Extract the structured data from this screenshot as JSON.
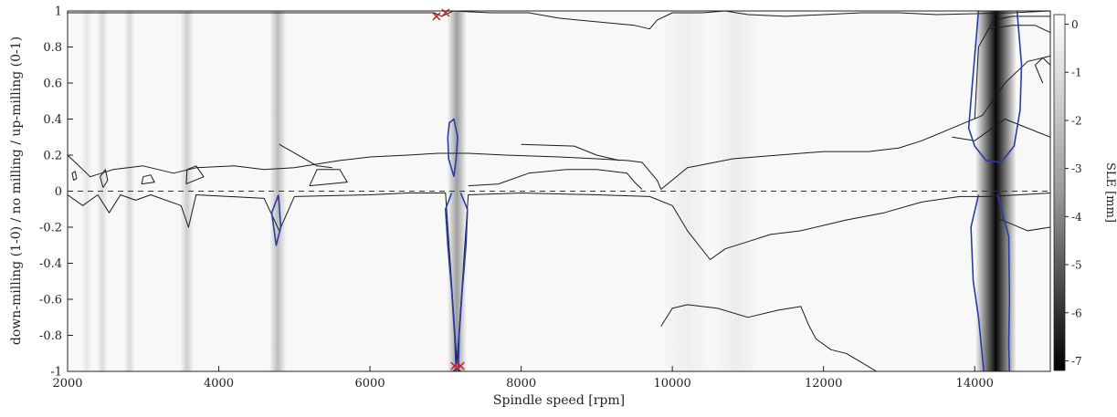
{
  "chart_data": {
    "type": "heatmap",
    "title": "",
    "xlabel": "Spindle speed [rpm]",
    "ylabel": "down-milling (1-0) / no milling / up-milling (0-1)",
    "xlim": [
      2000,
      15000
    ],
    "ylim": [
      -1,
      1
    ],
    "xticks": [
      2000,
      4000,
      6000,
      8000,
      10000,
      12000,
      14000
    ],
    "yticks": [
      -1,
      -0.8,
      -0.6,
      -0.4,
      -0.2,
      0,
      0.2,
      0.4,
      0.6,
      0.8,
      1
    ],
    "colorbar": {
      "label": "SLE [mm]",
      "range": [
        -7.2,
        0.2
      ],
      "ticks": [
        0,
        -1,
        -2,
        -3,
        -4,
        -5,
        -6,
        -7
      ],
      "colormap": "grayscale (white = 0, black = -7)"
    },
    "grid": false,
    "reference_line": {
      "y": 0,
      "style": "dashed"
    },
    "dark_bands": [
      {
        "x": 2250,
        "width": 35,
        "depth": -0.45
      },
      {
        "x": 2460,
        "width": 40,
        "depth": -0.75
      },
      {
        "x": 2820,
        "width": 45,
        "depth": -0.85
      },
      {
        "x": 3580,
        "width": 55,
        "depth": -1.2
      },
      {
        "x": 4780,
        "width": 70,
        "depth": -1.7
      },
      {
        "x": 7150,
        "width": 80,
        "depth": -2.6
      },
      {
        "x": 10200,
        "width": 200,
        "depth": -0.25
      },
      {
        "x": 10850,
        "width": 200,
        "depth": -0.3
      },
      {
        "x": 14280,
        "width": 170,
        "depth": -7.0
      }
    ],
    "contours": [
      {
        "color": "#1a1a1a",
        "points": [
          [
            2000,
            0.2
          ],
          [
            2100,
            0.16
          ],
          [
            2300,
            0.08
          ],
          [
            2600,
            0.12
          ],
          [
            3000,
            0.14
          ],
          [
            3400,
            0.1
          ],
          [
            3700,
            0.13
          ],
          [
            4200,
            0.14
          ],
          [
            4600,
            0.12
          ],
          [
            5000,
            0.13
          ],
          [
            5600,
            0.17
          ],
          [
            6000,
            0.19
          ],
          [
            6500,
            0.2
          ],
          [
            6900,
            0.21
          ],
          [
            7300,
            0.21
          ],
          [
            7800,
            0.2
          ],
          [
            8500,
            0.19
          ],
          [
            9000,
            0.18
          ],
          [
            9400,
            0.17
          ],
          [
            9600,
            0.16
          ],
          [
            9800,
            0.06
          ],
          [
            9850,
            0.01
          ]
        ]
      },
      {
        "color": "#1a1a1a",
        "points": [
          [
            7300,
            0.03
          ],
          [
            7700,
            0.04
          ],
          [
            8100,
            0.1
          ],
          [
            8600,
            0.12
          ],
          [
            9000,
            0.12
          ],
          [
            9400,
            0.1
          ],
          [
            9500,
            0.05
          ],
          [
            9600,
            0.01
          ]
        ]
      },
      {
        "color": "#1a1a1a",
        "points": [
          [
            9850,
            0.01
          ],
          [
            10200,
            0.13
          ],
          [
            10800,
            0.18
          ],
          [
            11400,
            0.2
          ],
          [
            12000,
            0.22
          ],
          [
            12600,
            0.22
          ],
          [
            13000,
            0.24
          ],
          [
            13300,
            0.28
          ],
          [
            13700,
            0.35
          ],
          [
            14100,
            0.42
          ],
          [
            14400,
            0.6
          ],
          [
            14700,
            0.72
          ],
          [
            15000,
            0.75
          ]
        ]
      },
      {
        "color": "#1a1a1a",
        "points": [
          [
            4800,
            0.26
          ],
          [
            5300,
            0.14
          ],
          [
            5500,
            0.13
          ]
        ]
      },
      {
        "color": "#1a1a1a",
        "points": [
          [
            8000,
            0.26
          ],
          [
            8700,
            0.25
          ],
          [
            9000,
            0.2
          ],
          [
            9300,
            0.17
          ]
        ]
      },
      {
        "color": "#1a1a1a",
        "points": [
          [
            13700,
            0.3
          ],
          [
            14000,
            0.28
          ],
          [
            14400,
            0.4
          ],
          [
            14700,
            0.35
          ],
          [
            15000,
            0.3
          ]
        ]
      },
      {
        "color": "#1a1a1a",
        "points": [
          [
            2000,
            0.99
          ],
          [
            6500,
            0.99
          ],
          [
            6850,
            0.99
          ],
          [
            6950,
            0.97
          ],
          [
            7100,
            1.0
          ],
          [
            7600,
            0.99
          ],
          [
            8100,
            0.99
          ],
          [
            8500,
            0.96
          ],
          [
            9000,
            0.94
          ],
          [
            9500,
            0.92
          ],
          [
            9700,
            0.9
          ],
          [
            9800,
            0.95
          ],
          [
            10000,
            0.99
          ],
          [
            10400,
            0.99
          ],
          [
            10700,
            1.0
          ],
          [
            11000,
            0.98
          ],
          [
            11500,
            0.97
          ],
          [
            12000,
            0.98
          ],
          [
            12500,
            0.99
          ],
          [
            13000,
            0.99
          ],
          [
            13500,
            0.98
          ],
          [
            14500,
            0.99
          ],
          [
            15000,
            1.0
          ]
        ]
      },
      {
        "color": "#1a1a1a",
        "points": [
          [
            14000,
            0.4
          ],
          [
            14050,
            0.8
          ],
          [
            14250,
            0.95
          ],
          [
            14500,
            0.97
          ],
          [
            15000,
            0.97
          ]
        ]
      },
      {
        "color": "#1a1a1a",
        "points": [
          [
            14200,
            0.9
          ],
          [
            14500,
            0.92
          ],
          [
            14800,
            0.92
          ],
          [
            15000,
            0.88
          ]
        ]
      },
      {
        "color": "#1a1a1a",
        "points": [
          [
            14900,
            0.6
          ],
          [
            14800,
            0.7
          ],
          [
            14900,
            0.74
          ],
          [
            15000,
            0.7
          ]
        ]
      },
      {
        "color": "#1a1a1a",
        "points": [
          [
            2000,
            -0.02
          ],
          [
            2200,
            -0.08
          ],
          [
            2400,
            -0.02
          ],
          [
            2550,
            -0.12
          ],
          [
            2700,
            -0.02
          ],
          [
            2900,
            -0.05
          ],
          [
            3100,
            -0.02
          ],
          [
            3500,
            -0.08
          ],
          [
            3600,
            -0.2
          ],
          [
            3700,
            -0.02
          ],
          [
            4600,
            -0.04
          ],
          [
            4800,
            -0.22
          ],
          [
            5000,
            -0.03
          ],
          [
            6000,
            -0.02
          ],
          [
            6500,
            -0.01
          ],
          [
            7000,
            -0.01
          ],
          [
            7150,
            -0.95
          ],
          [
            7300,
            -0.02
          ],
          [
            8000,
            -0.01
          ],
          [
            9000,
            -0.02
          ],
          [
            9700,
            -0.03
          ],
          [
            10000,
            -0.08
          ],
          [
            10200,
            -0.22
          ],
          [
            10500,
            -0.38
          ],
          [
            10700,
            -0.32
          ],
          [
            11000,
            -0.28
          ],
          [
            11300,
            -0.24
          ],
          [
            11700,
            -0.22
          ],
          [
            12300,
            -0.16
          ],
          [
            12800,
            -0.12
          ],
          [
            13300,
            -0.06
          ],
          [
            13800,
            -0.03
          ],
          [
            14200,
            -0.03
          ],
          [
            15000,
            -0.01
          ]
        ]
      },
      {
        "color": "#1a1a1a",
        "points": [
          [
            9850,
            -0.75
          ],
          [
            10000,
            -0.65
          ],
          [
            10200,
            -0.63
          ],
          [
            10600,
            -0.65
          ],
          [
            11000,
            -0.7
          ],
          [
            11400,
            -0.66
          ],
          [
            11700,
            -0.64
          ],
          [
            11800,
            -0.74
          ],
          [
            11900,
            -0.82
          ],
          [
            12100,
            -0.88
          ],
          [
            12300,
            -0.9
          ],
          [
            12500,
            -0.95
          ],
          [
            12700,
            -1.0
          ]
        ]
      },
      {
        "color": "#1a1a1a",
        "points": [
          [
            14300,
            -0.15
          ],
          [
            14700,
            -0.22
          ],
          [
            15000,
            -0.2
          ]
        ]
      },
      {
        "color": "#1a1a1a",
        "points": [
          [
            7100,
            -1.0
          ],
          [
            7150,
            -0.98
          ],
          [
            7200,
            -1.0
          ]
        ]
      },
      {
        "color": "#2a3aa8",
        "points": [
          [
            7110,
            0.08
          ],
          [
            7040,
            0.18
          ],
          [
            7030,
            0.3
          ],
          [
            7050,
            0.38
          ],
          [
            7110,
            0.4
          ],
          [
            7160,
            0.3
          ],
          [
            7140,
            0.18
          ],
          [
            7110,
            0.08
          ]
        ]
      },
      {
        "color": "#2a3aa8",
        "points": [
          [
            7080,
            -0.01
          ],
          [
            7000,
            -0.1
          ],
          [
            7030,
            -0.3
          ],
          [
            7080,
            -0.55
          ],
          [
            7120,
            -0.8
          ],
          [
            7140,
            -1.0
          ]
        ]
      },
      {
        "color": "#2a3aa8",
        "points": [
          [
            7200,
            -0.01
          ],
          [
            7290,
            -0.1
          ],
          [
            7270,
            -0.3
          ],
          [
            7220,
            -0.55
          ],
          [
            7180,
            -0.8
          ],
          [
            7170,
            -1.0
          ]
        ]
      },
      {
        "color": "#2a3aa8",
        "points": [
          [
            4790,
            -0.02
          ],
          [
            4700,
            -0.12
          ],
          [
            4760,
            -0.3
          ],
          [
            4820,
            -0.2
          ],
          [
            4790,
            -0.02
          ]
        ]
      },
      {
        "color": "#2a3aa8",
        "points": [
          [
            14050,
            1.0
          ],
          [
            13970,
            0.6
          ],
          [
            13920,
            0.35
          ],
          [
            14000,
            0.25
          ],
          [
            14150,
            0.17
          ],
          [
            14350,
            0.16
          ],
          [
            14520,
            0.25
          ],
          [
            14600,
            0.45
          ],
          [
            14620,
            0.7
          ],
          [
            14560,
            1.0
          ]
        ]
      },
      {
        "color": "#2a3aa8",
        "points": [
          [
            14050,
            -0.02
          ],
          [
            13950,
            -0.2
          ],
          [
            13980,
            -0.5
          ],
          [
            14050,
            -0.7
          ],
          [
            14120,
            -1.0
          ]
        ]
      },
      {
        "color": "#2a3aa8",
        "points": [
          [
            14300,
            -0.02
          ],
          [
            14450,
            -0.25
          ],
          [
            14460,
            -0.6
          ],
          [
            14450,
            -0.85
          ],
          [
            14460,
            -1.0
          ]
        ]
      },
      {
        "color": "#1a1a1a",
        "points": [
          [
            2080,
            0.06
          ],
          [
            2060,
            0.1
          ],
          [
            2100,
            0.11
          ],
          [
            2120,
            0.07
          ],
          [
            2080,
            0.06
          ]
        ]
      },
      {
        "color": "#1a1a1a",
        "points": [
          [
            2470,
            0.02
          ],
          [
            2430,
            0.08
          ],
          [
            2500,
            0.12
          ],
          [
            2530,
            0.06
          ],
          [
            2470,
            0.02
          ]
        ]
      },
      {
        "color": "#1a1a1a",
        "points": [
          [
            2980,
            0.04
          ],
          [
            3000,
            0.08
          ],
          [
            3100,
            0.09
          ],
          [
            3150,
            0.05
          ],
          [
            2980,
            0.04
          ]
        ]
      },
      {
        "color": "#1a1a1a",
        "points": [
          [
            3570,
            0.04
          ],
          [
            3580,
            0.12
          ],
          [
            3700,
            0.14
          ],
          [
            3800,
            0.08
          ],
          [
            3570,
            0.04
          ]
        ]
      },
      {
        "color": "#1a1a1a",
        "points": [
          [
            5200,
            0.03
          ],
          [
            5300,
            0.12
          ],
          [
            5600,
            0.12
          ],
          [
            5700,
            0.05
          ],
          [
            5200,
            0.03
          ]
        ]
      }
    ],
    "markers": [
      {
        "x": 6880,
        "y": 0.97,
        "symbol": "x",
        "color": "#d42020"
      },
      {
        "x": 7000,
        "y": 0.99,
        "symbol": "x",
        "color": "#d42020"
      },
      {
        "x": 7120,
        "y": -0.97,
        "symbol": "x",
        "color": "#d42020"
      },
      {
        "x": 7200,
        "y": -0.97,
        "symbol": "x",
        "color": "#d42020"
      }
    ]
  }
}
